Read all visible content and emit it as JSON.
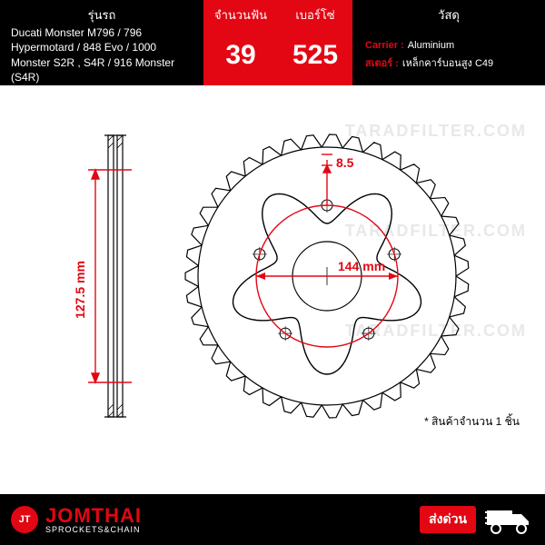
{
  "header": {
    "model": {
      "title": "รุ่นรถ",
      "text": "Ducati Monster M796 / 796 Hypermotard / 848 Evo / 1000 Monster S2R , S4R / 916 Monster (S4R)"
    },
    "teeth": {
      "title": "จำนวนฟัน",
      "value": "39"
    },
    "chain": {
      "title": "เบอร์โซ่",
      "value": "525"
    },
    "material": {
      "title": "วัสดุ",
      "carrier_label": "Carrier :",
      "carrier_value": "Aluminium",
      "sprocket_label": "สเตอร์ :",
      "sprocket_value": "เหล็กคาร์บอนสูง C49"
    }
  },
  "diagram": {
    "bolt_circle": "144 mm",
    "side_height": "127.5 mm",
    "hole_dia": "8.5",
    "teeth_count": 39,
    "colors": {
      "outline": "#000000",
      "dimension": "#e30613"
    },
    "stroke_width": 1.5
  },
  "watermark_text": "TARADFILTER.COM",
  "note": "* สินค้าจำนวน 1 ชิ้น",
  "footer": {
    "brand_logo": "JT",
    "brand_name": "JOMTHAI",
    "brand_sub": "SPROCKETS&CHAIN",
    "shipping_label": "ส่งด่วน"
  }
}
